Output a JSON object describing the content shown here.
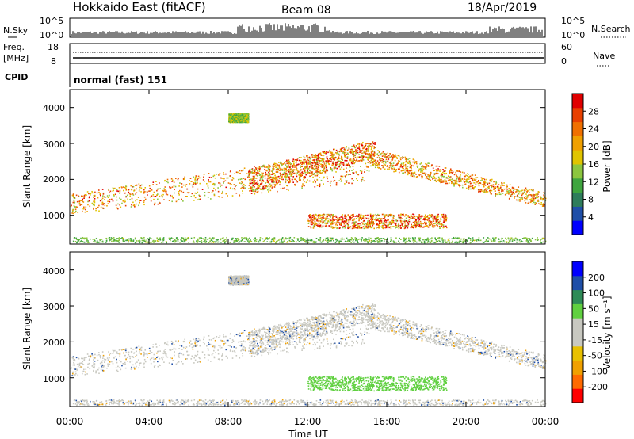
{
  "header": {
    "title": "Hokkaido East (fitACF)",
    "beam": "Beam 08",
    "date": "18/Apr/2019"
  },
  "top_panels": {
    "nsky_label": "N.Sky",
    "nsearch_label": "N.Search",
    "count_ticks": [
      "10^5",
      "10^0"
    ],
    "freq_label": "Freq.",
    "freq_unit": "[MHz]",
    "freq_ticks": [
      "18",
      "8"
    ],
    "nave_label": "Nave",
    "nave_ticks": [
      "60",
      "0"
    ],
    "cpid_label": "CPID",
    "cpid_value": "normal (fast) 151"
  },
  "chart_data": [
    {
      "type": "heatmap",
      "ylabel": "Slant Range [km]",
      "yticks": [
        "4000",
        "3000",
        "2000",
        "1000"
      ],
      "ylim": [
        200,
        4500
      ],
      "colorbar_label": "Power [dB]",
      "colorbar_ticks": [
        "28",
        "24",
        "20",
        "16",
        "12",
        "8",
        "4"
      ],
      "colorscale": [
        "#0000ff",
        "#1f4fa8",
        "#2e7d5b",
        "#3fa53f",
        "#8cc63f",
        "#e0c400",
        "#f0a000",
        "#f07000",
        "#e84000",
        "#e00000"
      ]
    },
    {
      "type": "heatmap",
      "xlabel": "Time UT",
      "ylabel": "Slant Range [km]",
      "yticks": [
        "4000",
        "3000",
        "2000",
        "1000"
      ],
      "ylim": [
        200,
        4500
      ],
      "xticks": [
        "00:00",
        "04:00",
        "08:00",
        "12:00",
        "16:00",
        "20:00",
        "00:00"
      ],
      "colorbar_label": "Velocity [m s⁻¹]",
      "colorbar_ticks": [
        "200",
        "100",
        "50",
        "15",
        "-15",
        "-50",
        "-100",
        "-200"
      ],
      "colorscale": [
        "#ff0000",
        "#ff6a00",
        "#f0a000",
        "#e8c000",
        "#c8c8c0",
        "#c8c8c0",
        "#60d040",
        "#2e8b57",
        "#1f4fa8",
        "#0000ff"
      ]
    }
  ]
}
